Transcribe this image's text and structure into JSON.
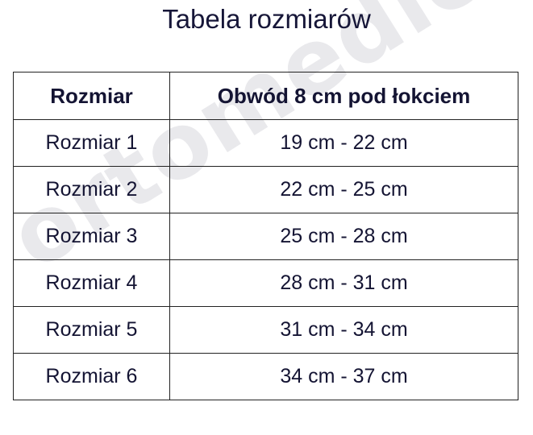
{
  "title": "Tabela rozmiarów",
  "watermark": "ortomedico.pl",
  "table": {
    "headers": [
      "Rozmiar",
      "Obwód 8 cm pod łokciem"
    ],
    "rows": [
      [
        "Rozmiar 1",
        "19 cm - 22 cm"
      ],
      [
        "Rozmiar 2",
        "22 cm - 25 cm"
      ],
      [
        "Rozmiar 3",
        "25 cm - 28 cm"
      ],
      [
        "Rozmiar 4",
        "28 cm - 31 cm"
      ],
      [
        "Rozmiar 5",
        "31 cm - 34 cm"
      ],
      [
        "Rozmiar 6",
        "34 cm - 37 cm"
      ]
    ]
  }
}
